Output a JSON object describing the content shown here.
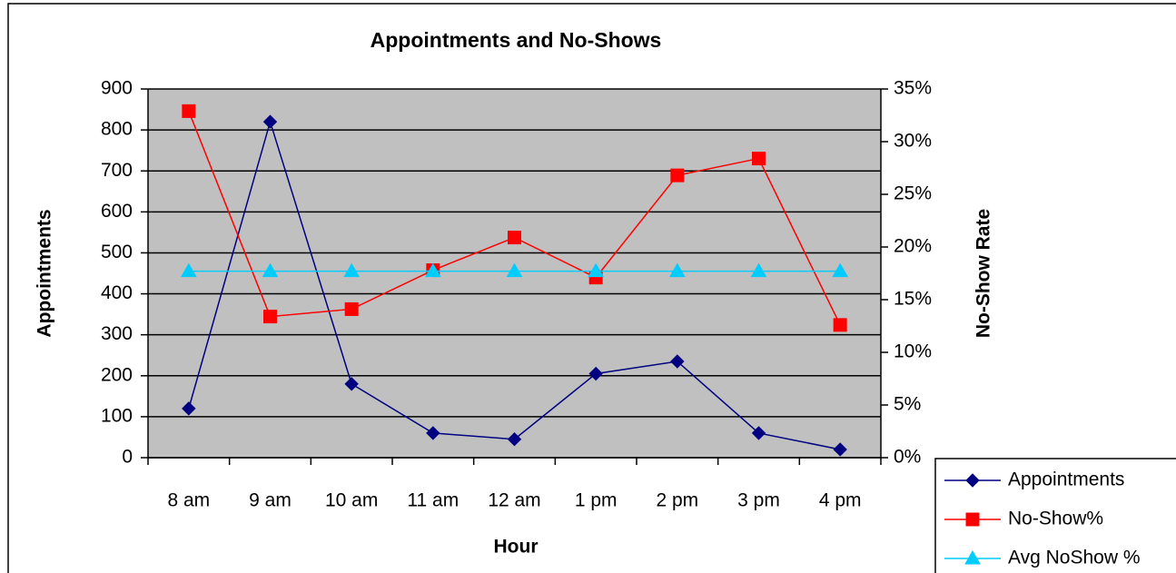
{
  "chart_data": {
    "type": "line",
    "title": "Appointments and No-Shows",
    "x_label": "Hour",
    "y_label": "Appointments",
    "y2_label": "No-Show Rate",
    "categories": [
      "8 am",
      "9 am",
      "10 am",
      "11 am",
      "12 am",
      "1 pm",
      "2 pm",
      "3 pm",
      "4 pm"
    ],
    "series": [
      {
        "name": "Appointments",
        "color": "#000080",
        "marker": "diamond",
        "values": [
          120,
          820,
          180,
          60,
          45,
          205,
          235,
          60,
          20
        ]
      },
      {
        "name": "No-Show%",
        "color": "#ff0000",
        "marker": "square",
        "axis": "y2",
        "values": [
          32.9,
          13.4,
          14.1,
          17.8,
          20.9,
          17.1,
          26.8,
          28.4,
          12.6
        ]
      },
      {
        "name": "Avg NoShow %",
        "color": "#00ccff",
        "marker": "triangle",
        "axis": "y2",
        "values": [
          17.7,
          17.7,
          17.7,
          17.7,
          17.7,
          17.7,
          17.7,
          17.7,
          17.7
        ]
      }
    ],
    "ylim": [
      0,
      900
    ],
    "yticks": [
      0,
      100,
      200,
      300,
      400,
      500,
      600,
      700,
      800,
      900
    ],
    "y2lim": [
      0,
      35
    ],
    "y2ticks": [
      {
        "value": 0,
        "label": "0%"
      },
      {
        "value": 5,
        "label": "5%"
      },
      {
        "value": 10,
        "label": "10%"
      },
      {
        "value": 15,
        "label": "15%"
      },
      {
        "value": 20,
        "label": "20%"
      },
      {
        "value": 25,
        "label": "25%"
      },
      {
        "value": 30,
        "label": "30%"
      },
      {
        "value": 35,
        "label": "35%"
      }
    ],
    "grid": true,
    "legend": "bottom-right"
  }
}
